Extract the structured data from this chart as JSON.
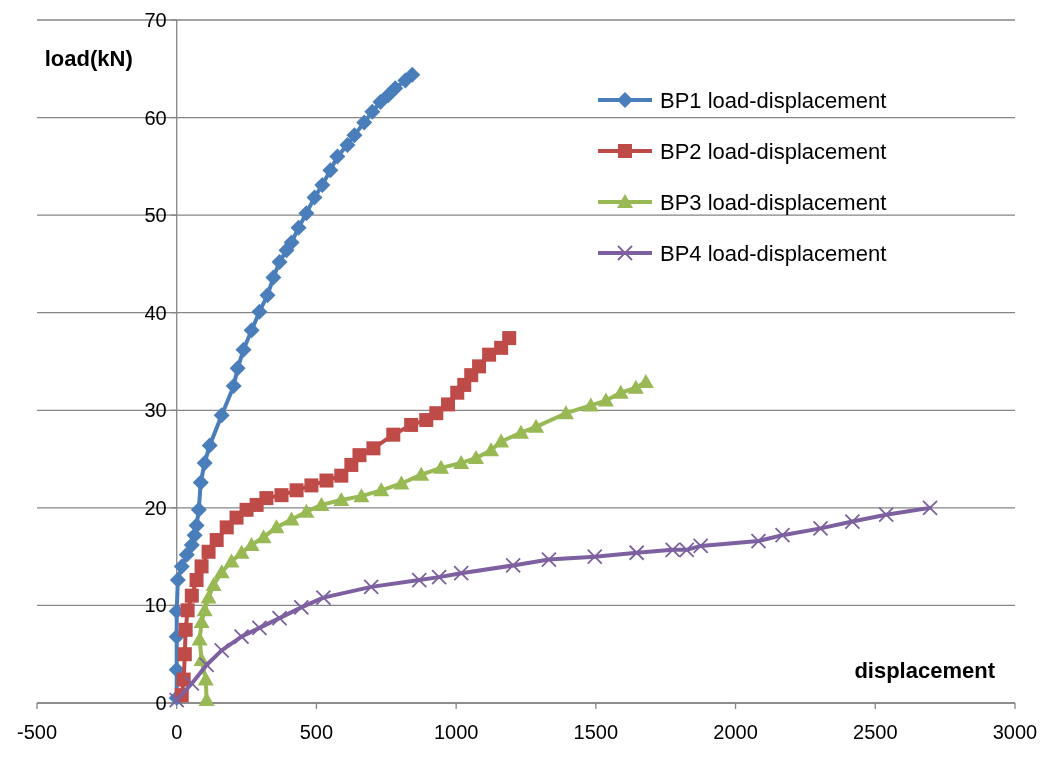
{
  "chart_data": {
    "type": "line",
    "xlabel": "displacement",
    "ylabel": "load(kN)",
    "xlim": [
      -500,
      3000
    ],
    "xticks": [
      -500,
      0,
      500,
      1000,
      1500,
      2000,
      2500,
      3000
    ],
    "ylim": [
      0,
      70
    ],
    "yticks": [
      0,
      10,
      20,
      30,
      40,
      50,
      60,
      70
    ],
    "grid": "y",
    "legend": "top right",
    "series": [
      {
        "name": "BP1 load-displacement",
        "color": "#4a7ebb",
        "marker": "diamond",
        "x": [
          0,
          0,
          0,
          0,
          4,
          18,
          36,
          54,
          64,
          71,
          79,
          86,
          100,
          118,
          161,
          204,
          218,
          239,
          268,
          296,
          325,
          346,
          368,
          393,
          411,
          436,
          464,
          493,
          521,
          550,
          575,
          611,
          636,
          671,
          700,
          729,
          757,
          782,
          818,
          843
        ],
        "values": [
          0.5,
          3.4,
          6.8,
          9.4,
          12.6,
          14,
          15.2,
          16.2,
          17.2,
          18.2,
          19.8,
          22.6,
          24.6,
          26.4,
          29.5,
          32.5,
          34.3,
          36.2,
          38.2,
          40.1,
          41.8,
          43.6,
          45.2,
          46.4,
          47.2,
          48.7,
          50.2,
          51.8,
          53.1,
          54.6,
          56,
          57.2,
          58.2,
          59.5,
          60.6,
          61.6,
          62.3,
          63,
          63.8,
          64.4
        ]
      },
      {
        "name": "BP2 load-displacement",
        "color": "#be4b48",
        "marker": "square",
        "x": [
          18,
          25,
          29,
          32,
          39,
          54,
          71,
          89,
          114,
          143,
          179,
          214,
          250,
          286,
          321,
          375,
          429,
          482,
          536,
          589,
          625,
          654,
          704,
          775,
          839,
          893,
          929,
          971,
          1004,
          1029,
          1054,
          1082,
          1118,
          1161,
          1190
        ],
        "values": [
          0.8,
          2.4,
          5,
          7.5,
          9.5,
          11,
          12.6,
          14,
          15.5,
          16.7,
          18,
          19,
          19.8,
          20.3,
          21,
          21.3,
          21.8,
          22.3,
          22.8,
          23.3,
          24.4,
          25.4,
          26.1,
          27.5,
          28.5,
          29,
          29.7,
          30.6,
          31.8,
          32.6,
          33.6,
          34.5,
          35.7,
          36.4,
          37.4
        ]
      },
      {
        "name": "BP3 load-displacement",
        "color": "#98b954",
        "marker": "triangle",
        "x": [
          107,
          104,
          89,
          82,
          89,
          100,
          114,
          132,
          161,
          196,
          232,
          268,
          311,
          357,
          411,
          464,
          518,
          589,
          661,
          732,
          804,
          875,
          946,
          1018,
          1071,
          1125,
          1161,
          1232,
          1286,
          1393,
          1482,
          1536,
          1589,
          1643,
          1679
        ],
        "values": [
          0.3,
          2.4,
          4.4,
          6.5,
          8.3,
          9.5,
          10.8,
          12.1,
          13.4,
          14.5,
          15.4,
          16.2,
          17,
          18,
          18.8,
          19.6,
          20.3,
          20.8,
          21.2,
          21.8,
          22.5,
          23.4,
          24.1,
          24.6,
          25.1,
          25.9,
          26.8,
          27.7,
          28.3,
          29.7,
          30.5,
          31,
          31.8,
          32.3,
          32.9
        ]
      },
      {
        "name": "BP4 load-displacement",
        "color": "#7d60a0",
        "marker": "cross",
        "x": [
          0,
          54,
          107,
          161,
          232,
          296,
          368,
          446,
          525,
          696,
          868,
          939,
          1018,
          1204,
          1332,
          1496,
          1646,
          1775,
          1825,
          1875,
          2082,
          2168,
          2304,
          2418,
          2539,
          2696
        ],
        "values": [
          0.3,
          2,
          3.9,
          5.4,
          6.8,
          7.7,
          8.7,
          9.8,
          10.8,
          11.9,
          12.6,
          12.9,
          13.3,
          14.1,
          14.7,
          15,
          15.4,
          15.7,
          15.7,
          16.1,
          16.6,
          17.2,
          17.9,
          18.6,
          19.3,
          20
        ]
      }
    ]
  }
}
